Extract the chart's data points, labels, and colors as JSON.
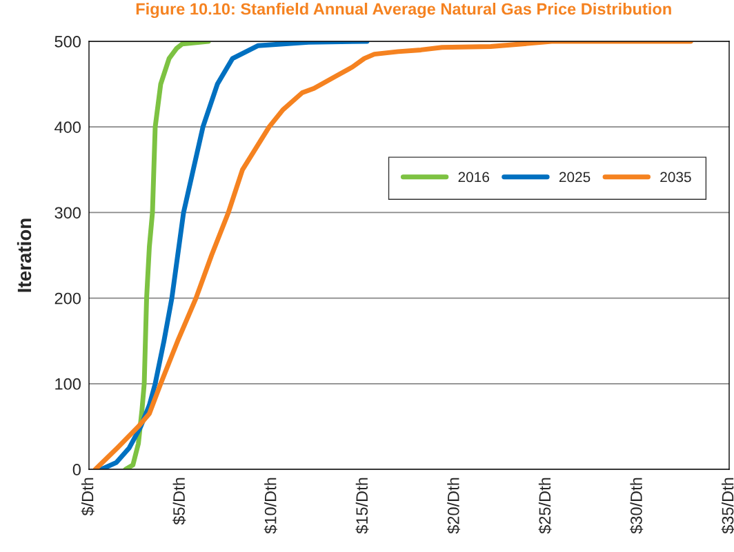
{
  "chart_data": {
    "type": "line",
    "title": "Figure 10.10: Stanfield Annual Average Natural Gas Price Distribution",
    "ylabel": "Iteration",
    "xlim": [
      0,
      35
    ],
    "xticks": [
      {
        "value": 0,
        "label": "$/Dth"
      },
      {
        "value": 5,
        "label": "$5/Dth"
      },
      {
        "value": 10,
        "label": "$10/Dth"
      },
      {
        "value": 15,
        "label": "$15/Dth"
      },
      {
        "value": 20,
        "label": "$20/Dth"
      },
      {
        "value": 25,
        "label": "$25/Dth"
      },
      {
        "value": 30,
        "label": "$30/Dth"
      },
      {
        "value": 35,
        "label": "$35/Dth"
      }
    ],
    "ylim": [
      0,
      500
    ],
    "yticks": [
      0,
      100,
      200,
      300,
      400,
      500
    ],
    "grid": "y",
    "legend": "right",
    "marker": "none",
    "line_style": "solid",
    "series": [
      {
        "name": "2016",
        "color": "#7dc242",
        "x": [
          2.0,
          2.4,
          2.7,
          2.9,
          3.02,
          3.15,
          3.3,
          3.47,
          3.62,
          3.92,
          4.38,
          4.8,
          5.1,
          6.53
        ],
        "values": [
          0,
          5,
          30,
          70,
          100,
          200,
          260,
          300,
          400,
          450,
          480,
          492,
          497,
          500
        ]
      },
      {
        "name": "2025",
        "color": "#0070c0",
        "x": [
          0.68,
          1.5,
          2.2,
          2.83,
          3.3,
          3.62,
          4.1,
          4.53,
          4.85,
          5.17,
          5.7,
          6.23,
          7.02,
          7.85,
          9.25,
          12.0,
          15.2
        ],
        "values": [
          0,
          8,
          25,
          50,
          75,
          100,
          150,
          200,
          250,
          300,
          350,
          400,
          450,
          480,
          495,
          499,
          500
        ]
      },
      {
        "name": "2035",
        "color": "#f58220",
        "x": [
          0.35,
          1.55,
          2.7,
          3.3,
          3.92,
          4.85,
          5.85,
          6.7,
          7.62,
          8.39,
          9.85,
          10.6,
          11.66,
          12.3,
          13.55,
          14.4,
          15.05,
          15.6,
          16.9,
          18.15,
          19.3,
          21.96,
          23.7,
          25.3,
          32.9
        ],
        "values": [
          0,
          25,
          50,
          65,
          100,
          150,
          200,
          250,
          300,
          350,
          400,
          420,
          440,
          445,
          460,
          470,
          480,
          485,
          488,
          490,
          493,
          494,
          497,
          500,
          500
        ]
      }
    ]
  }
}
